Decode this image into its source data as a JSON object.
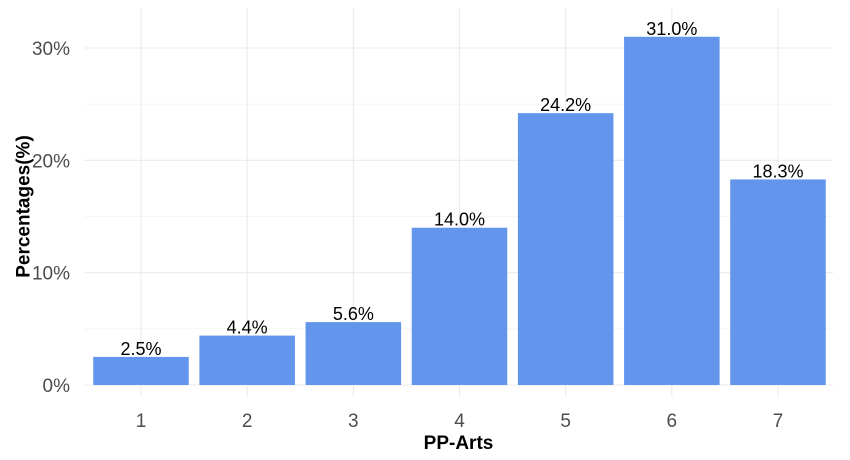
{
  "chart_data": {
    "type": "bar",
    "title": "",
    "xlabel": "PP-Arts",
    "ylabel": "Percentages(%)",
    "categories": [
      "1",
      "2",
      "3",
      "4",
      "5",
      "6",
      "7"
    ],
    "values": [
      2.5,
      4.4,
      5.6,
      14.0,
      24.2,
      31.0,
      18.3
    ],
    "data_labels": [
      "2.5%",
      "4.4%",
      "5.6%",
      "14.0%",
      "24.2%",
      "31.0%",
      "18.3%"
    ],
    "y_ticks": [
      0,
      10,
      20,
      30
    ],
    "y_tick_labels": [
      "0%",
      "10%",
      "20%",
      "30%"
    ],
    "ylim": [
      0,
      32.5
    ],
    "grid": true,
    "legend": "none",
    "bar_color": "#6495ED"
  }
}
